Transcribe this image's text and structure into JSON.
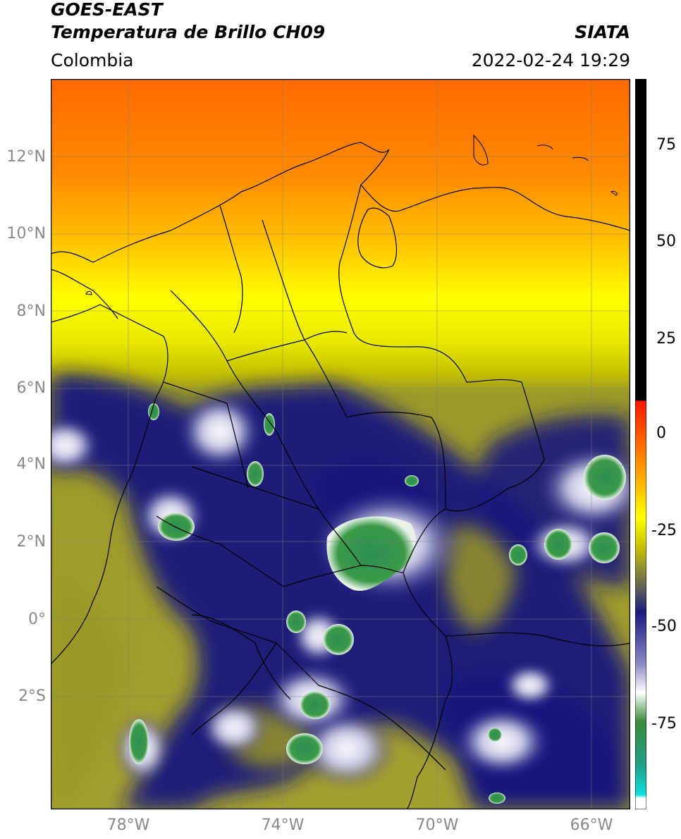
{
  "header": {
    "satellite": "GOES-EAST",
    "product": "Temperatura de Brillo CH09",
    "region": "Colombia",
    "org": "SIATA",
    "datetime": "2022-02-24 19:29"
  },
  "axes": {
    "lat_labels": [
      "12°N",
      "10°N",
      "8°N",
      "6°N",
      "4°N",
      "2°N",
      "0°",
      "2°S"
    ],
    "lon_labels": [
      "78°W",
      "74°W",
      "70°W",
      "66°W"
    ]
  },
  "colorbar": {
    "ticks": [
      "75",
      "50",
      "25",
      "0",
      "-25",
      "-50",
      "-75"
    ],
    "range": [
      -95,
      90
    ]
  },
  "colors": {
    "orange": "#ff7a00",
    "yellow": "#f2ee00",
    "olive": "#9a9a20",
    "navy": "#13137a",
    "green": "#2e8a3c",
    "cyan": "#1fd8d8",
    "red": "#ff1a00",
    "black": "#000000"
  }
}
